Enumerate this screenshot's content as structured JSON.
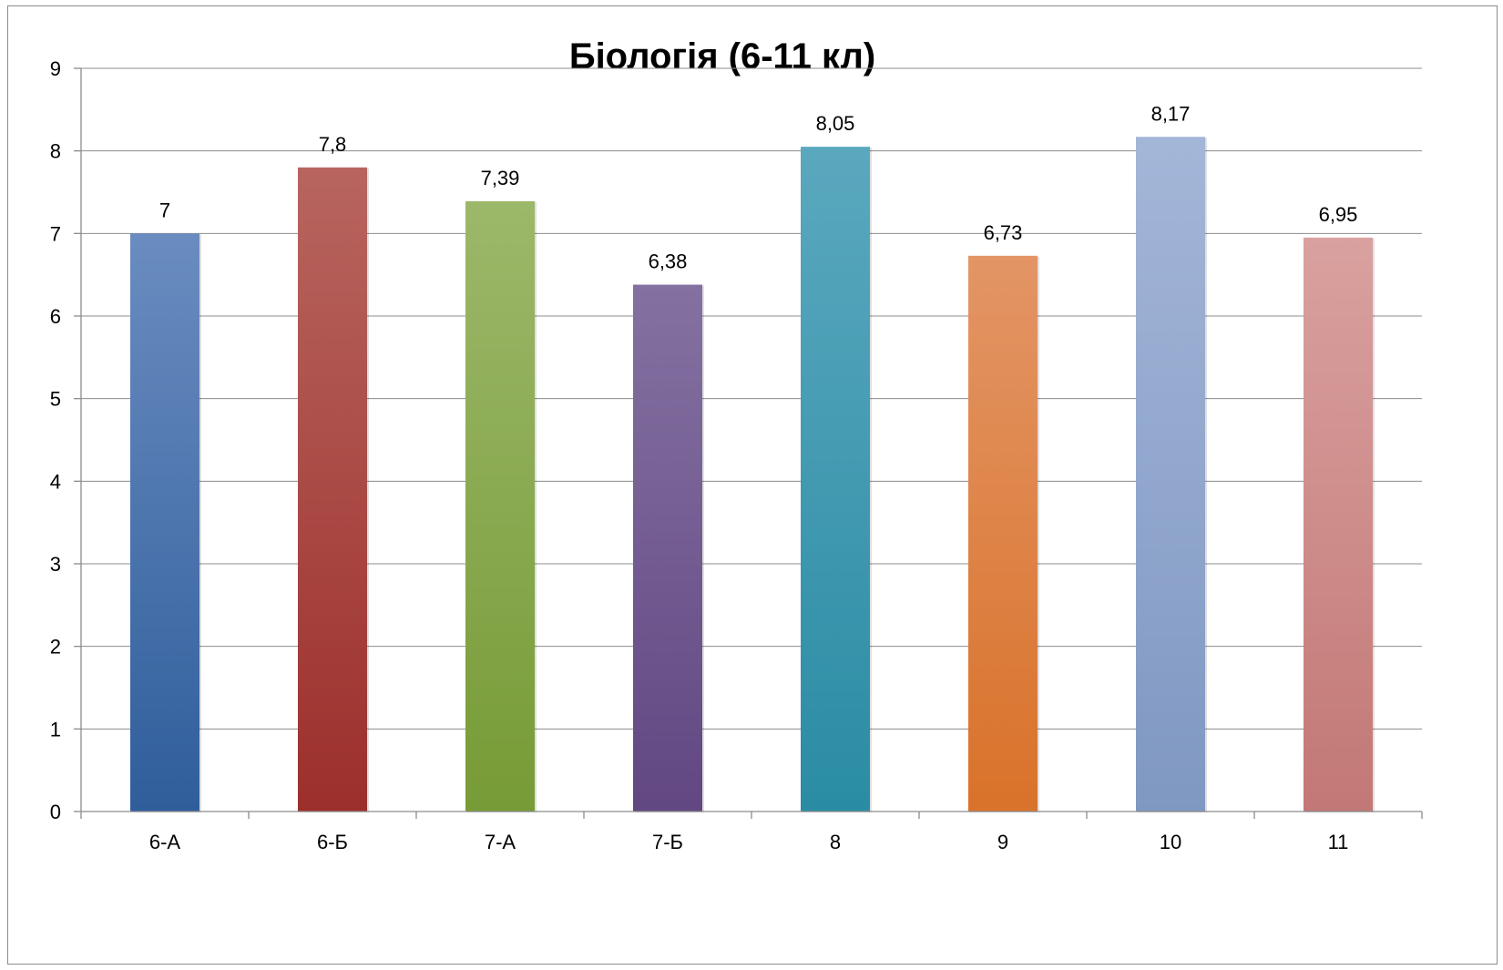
{
  "chart_data": {
    "type": "bar",
    "title": "Біологія (6-11 кл)",
    "xlabel": "",
    "ylabel": "",
    "categories": [
      "6-А",
      "6-Б",
      "7-А",
      "7-Б",
      "8",
      "9",
      "10",
      "11"
    ],
    "values": [
      7,
      7.8,
      7.39,
      6.38,
      8.05,
      6.73,
      8.17,
      6.95
    ],
    "data_labels": [
      "7",
      "7,8",
      "7,39",
      "6,38",
      "8,05",
      "6,73",
      "8,17",
      "6,95"
    ],
    "ylim": [
      0,
      9
    ],
    "y_ticks": [
      0,
      1,
      2,
      3,
      4,
      5,
      6,
      7,
      8,
      9
    ],
    "grid": true,
    "legend": "none",
    "bar_colors": [
      [
        "#6a8cc0",
        "#2f5e9b"
      ],
      [
        "#b8655f",
        "#9c2f2c"
      ],
      [
        "#9cb86a",
        "#779b36"
      ],
      [
        "#8471a1",
        "#624782"
      ],
      [
        "#5aa8be",
        "#2a8ca4"
      ],
      [
        "#e39565",
        "#d9722a"
      ],
      [
        "#a4b6d8",
        "#7f98c2"
      ],
      [
        "#d9a19f",
        "#c27876"
      ]
    ]
  }
}
